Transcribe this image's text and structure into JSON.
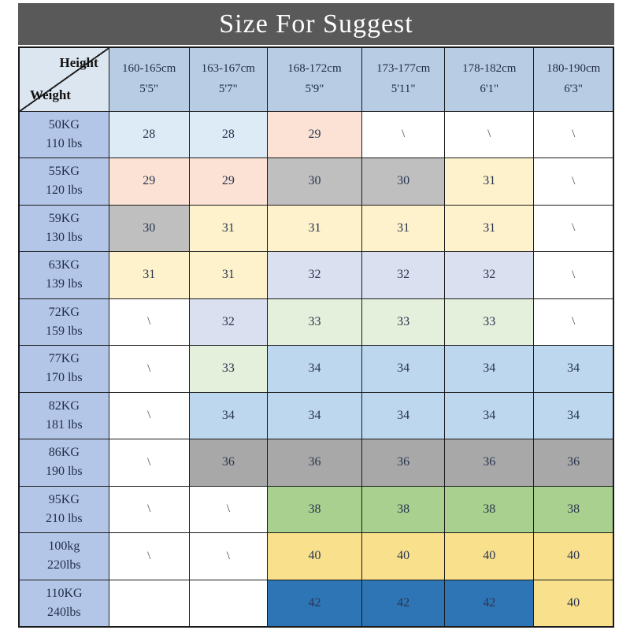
{
  "title": "Size For Suggest",
  "corner": {
    "top": "Height",
    "bottom": "Weight"
  },
  "columns": [
    {
      "cm": "160-165cm",
      "ft": "5'5\""
    },
    {
      "cm": "163-167cm",
      "ft": "5'7\""
    },
    {
      "cm": "168-172cm",
      "ft": "5'9\""
    },
    {
      "cm": "173-177cm",
      "ft": "5'11\""
    },
    {
      "cm": "178-182cm",
      "ft": "6'1\""
    },
    {
      "cm": "180-190cm",
      "ft": "6'3\""
    }
  ],
  "palette": {
    "pale_blue": "#ddebf7",
    "peach": "#fbe2d5",
    "gray": "#bfbfbf",
    "pale_yellow": "#fdf2cc",
    "lavender": "#dbe0f0",
    "pale_green": "#e4efdc",
    "light_blue": "#bdd7ee",
    "dark_gray": "#a8a8a8",
    "green": "#a9d08e",
    "gold": "#f8e08d",
    "dark_blue": "#2e75b6",
    "white": "#ffffff",
    "header_blue": "#b8cce4",
    "row_header_blue": "#b4c6e7",
    "corner_blue": "#dce6f1",
    "banner_gray": "#595959"
  },
  "rows": [
    {
      "kg": "50KG",
      "lbs": "110 lbs",
      "cells": [
        {
          "v": "28",
          "bg": "pale_blue"
        },
        {
          "v": "28",
          "bg": "pale_blue"
        },
        {
          "v": "29",
          "bg": "peach"
        },
        {
          "v": "\\",
          "bg": "white"
        },
        {
          "v": "\\",
          "bg": "white"
        },
        {
          "v": "\\",
          "bg": "white"
        }
      ]
    },
    {
      "kg": "55KG",
      "lbs": "120 lbs",
      "cells": [
        {
          "v": "29",
          "bg": "peach"
        },
        {
          "v": "29",
          "bg": "peach"
        },
        {
          "v": "30",
          "bg": "gray"
        },
        {
          "v": "30",
          "bg": "gray"
        },
        {
          "v": "31",
          "bg": "pale_yellow"
        },
        {
          "v": "\\",
          "bg": "white"
        }
      ]
    },
    {
      "kg": "59KG",
      "lbs": "130 lbs",
      "cells": [
        {
          "v": "30",
          "bg": "gray"
        },
        {
          "v": "31",
          "bg": "pale_yellow"
        },
        {
          "v": "31",
          "bg": "pale_yellow"
        },
        {
          "v": "31",
          "bg": "pale_yellow"
        },
        {
          "v": "31",
          "bg": "pale_yellow"
        },
        {
          "v": "\\",
          "bg": "white"
        }
      ]
    },
    {
      "kg": "63KG",
      "lbs": "139 lbs",
      "cells": [
        {
          "v": "31",
          "bg": "pale_yellow"
        },
        {
          "v": "31",
          "bg": "pale_yellow"
        },
        {
          "v": "32",
          "bg": "lavender"
        },
        {
          "v": "32",
          "bg": "lavender"
        },
        {
          "v": "32",
          "bg": "lavender"
        },
        {
          "v": "\\",
          "bg": "white"
        }
      ]
    },
    {
      "kg": "72KG",
      "lbs": "159 lbs",
      "cells": [
        {
          "v": "\\",
          "bg": "white"
        },
        {
          "v": "32",
          "bg": "lavender"
        },
        {
          "v": "33",
          "bg": "pale_green"
        },
        {
          "v": "33",
          "bg": "pale_green"
        },
        {
          "v": "33",
          "bg": "pale_green"
        },
        {
          "v": "\\",
          "bg": "white"
        }
      ]
    },
    {
      "kg": "77KG",
      "lbs": "170 lbs",
      "cells": [
        {
          "v": "\\",
          "bg": "white"
        },
        {
          "v": "33",
          "bg": "pale_green"
        },
        {
          "v": "34",
          "bg": "light_blue"
        },
        {
          "v": "34",
          "bg": "light_blue"
        },
        {
          "v": "34",
          "bg": "light_blue"
        },
        {
          "v": "34",
          "bg": "light_blue"
        }
      ]
    },
    {
      "kg": "82KG",
      "lbs": "181 lbs",
      "cells": [
        {
          "v": "\\",
          "bg": "white"
        },
        {
          "v": "34",
          "bg": "light_blue"
        },
        {
          "v": "34",
          "bg": "light_blue"
        },
        {
          "v": "34",
          "bg": "light_blue"
        },
        {
          "v": "34",
          "bg": "light_blue"
        },
        {
          "v": "34",
          "bg": "light_blue"
        }
      ]
    },
    {
      "kg": "86KG",
      "lbs": "190 lbs",
      "cells": [
        {
          "v": "\\",
          "bg": "white"
        },
        {
          "v": "36",
          "bg": "dark_gray"
        },
        {
          "v": "36",
          "bg": "dark_gray"
        },
        {
          "v": "36",
          "bg": "dark_gray"
        },
        {
          "v": "36",
          "bg": "dark_gray"
        },
        {
          "v": "36",
          "bg": "dark_gray"
        }
      ]
    },
    {
      "kg": "95KG",
      "lbs": "210 lbs",
      "cells": [
        {
          "v": "\\",
          "bg": "white"
        },
        {
          "v": "\\",
          "bg": "white"
        },
        {
          "v": "38",
          "bg": "green"
        },
        {
          "v": "38",
          "bg": "green"
        },
        {
          "v": "38",
          "bg": "green"
        },
        {
          "v": "38",
          "bg": "green"
        }
      ]
    },
    {
      "kg": "100kg",
      "lbs": "220lbs",
      "cells": [
        {
          "v": "\\",
          "bg": "white"
        },
        {
          "v": "\\",
          "bg": "white"
        },
        {
          "v": "40",
          "bg": "gold"
        },
        {
          "v": "40",
          "bg": "gold"
        },
        {
          "v": "40",
          "bg": "gold"
        },
        {
          "v": "40",
          "bg": "gold"
        }
      ]
    },
    {
      "kg": "110KG",
      "lbs": "240lbs",
      "cells": [
        {
          "v": "",
          "bg": "white"
        },
        {
          "v": "",
          "bg": "white"
        },
        {
          "v": "42",
          "bg": "dark_blue"
        },
        {
          "v": "42",
          "bg": "dark_blue"
        },
        {
          "v": "42",
          "bg": "dark_blue"
        },
        {
          "v": "40",
          "bg": "gold"
        }
      ]
    }
  ],
  "chart_data": {
    "type": "table",
    "title": "Size For Suggest",
    "columns": [
      "160-165cm 5'5\"",
      "163-167cm 5'7\"",
      "168-172cm 5'9\"",
      "173-177cm 5'11\"",
      "178-182cm 6'1\"",
      "180-190cm 6'3\""
    ],
    "row_labels": [
      "50KG 110 lbs",
      "55KG 120 lbs",
      "59KG 130 lbs",
      "63KG 139 lbs",
      "72KG 159 lbs",
      "77KG 170 lbs",
      "82KG 181 lbs",
      "86KG 190 lbs",
      "95KG 210 lbs",
      "100kg 220lbs",
      "110KG 240lbs"
    ],
    "values": [
      [
        "28",
        "28",
        "29",
        "\\",
        "\\",
        "\\"
      ],
      [
        "29",
        "29",
        "30",
        "30",
        "31",
        "\\"
      ],
      [
        "30",
        "31",
        "31",
        "31",
        "31",
        "\\"
      ],
      [
        "31",
        "31",
        "32",
        "32",
        "32",
        "\\"
      ],
      [
        "\\",
        "32",
        "33",
        "33",
        "33",
        "\\"
      ],
      [
        "\\",
        "33",
        "34",
        "34",
        "34",
        "34"
      ],
      [
        "\\",
        "34",
        "34",
        "34",
        "34",
        "34"
      ],
      [
        "\\",
        "36",
        "36",
        "36",
        "36",
        "36"
      ],
      [
        "\\",
        "\\",
        "38",
        "38",
        "38",
        "38"
      ],
      [
        "\\",
        "\\",
        "40",
        "40",
        "40",
        "40"
      ],
      [
        "",
        "",
        "42",
        "42",
        "42",
        "40"
      ]
    ]
  }
}
